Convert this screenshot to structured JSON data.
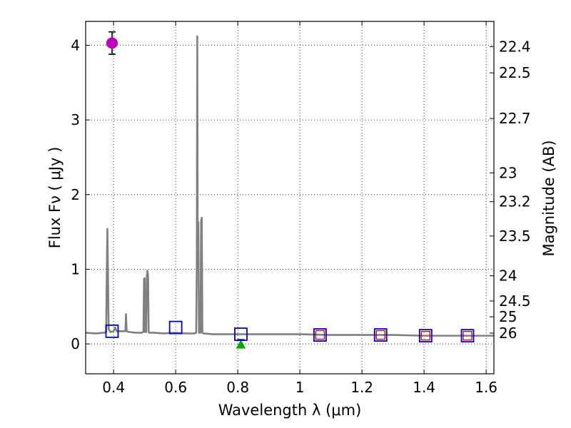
{
  "chart_data": {
    "type": "line",
    "title": "",
    "xlabel": "Wavelength  λ (μm)",
    "ylabel": "Flux  Fν  ( μJy )",
    "y2label": "Magnitude (AB)",
    "xlim": [
      0.31,
      1.625
    ],
    "ylim": [
      -0.4,
      4.32
    ],
    "grid": true,
    "x_ticks": [
      0.4,
      0.6,
      0.8,
      1.0,
      1.2,
      1.4,
      1.6
    ],
    "x_tick_labels": [
      "0.4",
      "0.6",
      "0.8",
      "1",
      "1.2",
      "1.4",
      "1.6"
    ],
    "y_ticks": [
      0,
      1,
      2,
      3,
      4
    ],
    "y_tick_labels": [
      "0",
      "1",
      "2",
      "3",
      "4"
    ],
    "mag_ticks": [
      22.4,
      22.5,
      22.7,
      23,
      23.2,
      23.5,
      24,
      24.5,
      25,
      26
    ],
    "mag_tick_labels": [
      "22.4",
      "22.5",
      "22.7",
      "23",
      "23.2",
      "23.5",
      "24",
      "24.5",
      "25",
      "26"
    ],
    "colors": {
      "model": "#808080",
      "measured_point": "#bf00bf",
      "model_box": "#0000cc",
      "band_box_inner": "#cc0000",
      "upper_limit": "#00aa00",
      "grid": "#000000"
    },
    "series": [
      {
        "name": "model spectrum",
        "style": "line",
        "x": [
          0.31,
          0.34,
          0.37,
          0.376,
          0.378,
          0.38,
          0.382,
          0.384,
          0.39,
          0.4,
          0.405,
          0.41,
          0.42,
          0.43,
          0.438,
          0.44,
          0.442,
          0.45,
          0.47,
          0.49,
          0.496,
          0.498,
          0.5,
          0.502,
          0.505,
          0.507,
          0.509,
          0.511,
          0.513,
          0.515,
          0.53,
          0.56,
          0.6,
          0.63,
          0.66,
          0.666,
          0.668,
          0.6695,
          0.671,
          0.673,
          0.675,
          0.677,
          0.68,
          0.682,
          0.684,
          0.686,
          0.69,
          0.72,
          0.8,
          0.9,
          1.0,
          1.1,
          1.2,
          1.3,
          1.4,
          1.5,
          1.625
        ],
        "y": [
          0.15,
          0.14,
          0.15,
          0.16,
          0.9,
          1.54,
          0.9,
          0.2,
          0.16,
          0.17,
          0.22,
          0.17,
          0.17,
          0.17,
          0.17,
          0.4,
          0.17,
          0.16,
          0.15,
          0.15,
          0.16,
          0.87,
          0.88,
          0.16,
          0.16,
          0.9,
          0.98,
          0.92,
          0.16,
          0.15,
          0.15,
          0.14,
          0.15,
          0.14,
          0.14,
          0.15,
          1.0,
          4.12,
          1.0,
          1.63,
          0.15,
          0.15,
          0.15,
          1.65,
          1.69,
          0.15,
          0.14,
          0.13,
          0.13,
          0.13,
          0.13,
          0.12,
          0.12,
          0.12,
          0.11,
          0.11,
          0.11
        ]
      },
      {
        "name": "measured flux",
        "style": "errorbar",
        "points": [
          {
            "x": 0.395,
            "y": 4.03,
            "err": 0.15
          }
        ]
      },
      {
        "name": "model band fluxes",
        "style": "open-square",
        "points": [
          {
            "x": 0.395,
            "y": 0.17
          },
          {
            "x": 0.6,
            "y": 0.22
          },
          {
            "x": 0.81,
            "y": 0.13
          },
          {
            "x": 1.065,
            "y": 0.12
          },
          {
            "x": 1.26,
            "y": 0.12
          },
          {
            "x": 1.405,
            "y": 0.11
          },
          {
            "x": 1.54,
            "y": 0.11
          }
        ]
      },
      {
        "name": "band measurements",
        "style": "small-square",
        "points": [
          {
            "x": 1.065,
            "y": 0.12
          },
          {
            "x": 1.26,
            "y": 0.12
          },
          {
            "x": 1.405,
            "y": 0.11
          },
          {
            "x": 1.54,
            "y": 0.11
          }
        ]
      },
      {
        "name": "upper limit",
        "style": "triangle",
        "points": [
          {
            "x": 0.81,
            "y": 0.0
          }
        ]
      }
    ]
  }
}
